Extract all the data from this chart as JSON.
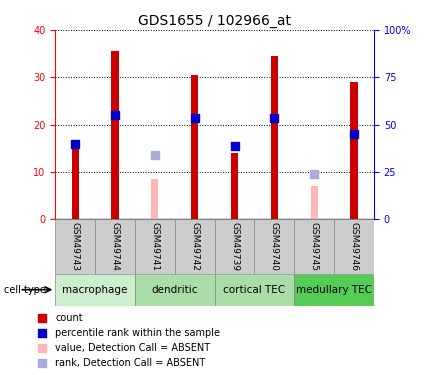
{
  "title": "GDS1655 / 102966_at",
  "samples": [
    "GSM49743",
    "GSM49744",
    "GSM49741",
    "GSM49742",
    "GSM49739",
    "GSM49740",
    "GSM49745",
    "GSM49746"
  ],
  "count_values": [
    15,
    35.5,
    null,
    30.5,
    14,
    34.5,
    null,
    29
  ],
  "count_absent": [
    null,
    null,
    8.5,
    null,
    null,
    null,
    7,
    null
  ],
  "rank_values": [
    16,
    22,
    null,
    21.5,
    15.5,
    21.5,
    null,
    18
  ],
  "rank_absent": [
    null,
    null,
    13.5,
    null,
    null,
    null,
    9.5,
    null
  ],
  "cell_types": [
    {
      "label": "macrophage",
      "start": 0,
      "end": 2,
      "color": "#cceecc"
    },
    {
      "label": "dendritic",
      "start": 2,
      "end": 4,
      "color": "#aaddaa"
    },
    {
      "label": "cortical TEC",
      "start": 4,
      "end": 6,
      "color": "#aaddaa"
    },
    {
      "label": "medullary TEC",
      "start": 6,
      "end": 8,
      "color": "#55cc55"
    }
  ],
  "left_ylim": [
    0,
    40
  ],
  "right_ylim": [
    0,
    100
  ],
  "left_yticks": [
    0,
    10,
    20,
    30,
    40
  ],
  "right_yticks": [
    0,
    25,
    50,
    75,
    100
  ],
  "right_yticklabels": [
    "0",
    "25",
    "50",
    "75",
    "100%"
  ],
  "bar_color_present": "#cc0000",
  "bar_color_absent": "#ffb6b6",
  "rank_color_present": "#0000cc",
  "rank_color_absent": "#aaaadd",
  "bar_width": 0.18,
  "rank_marker_size": 30,
  "sample_box_color": "#cccccc",
  "grid_color": "black",
  "grid_lw": 0.7,
  "left_tick_color": "red",
  "right_tick_color": "blue",
  "title_fontsize": 10,
  "legend_fontsize": 7,
  "sample_fontsize": 6.5,
  "celltype_fontsize": 7.5,
  "ytick_fontsize": 7
}
